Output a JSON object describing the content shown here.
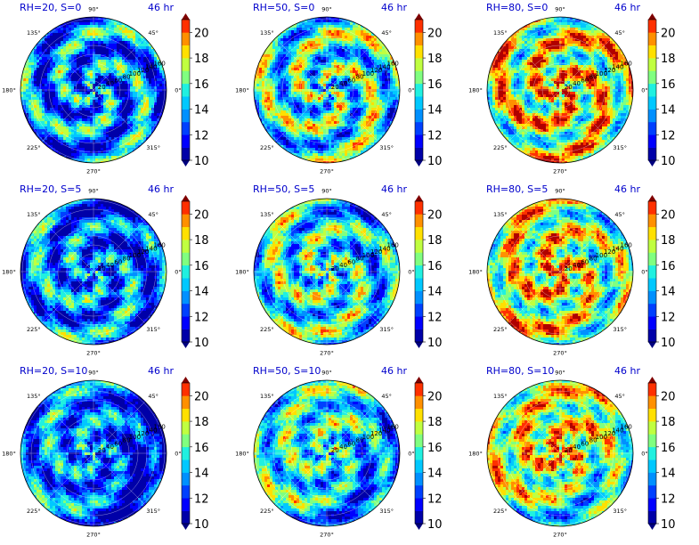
{
  "chart_data": {
    "type": "polar-filled-contour",
    "grid": {
      "rows": 3,
      "cols": 3
    },
    "colorbar": {
      "ticks": [
        10,
        12,
        14,
        16,
        18,
        20
      ],
      "range": [
        10,
        21
      ],
      "extend": "both",
      "colormap": "jet",
      "levels": [
        10,
        11,
        12,
        13,
        14,
        15,
        16,
        17,
        18,
        19,
        20,
        21
      ],
      "colors": [
        "#0000a8",
        "#0000ff",
        "#0040ff",
        "#0090ff",
        "#00c8ff",
        "#20f0e0",
        "#80ff80",
        "#c0ff40",
        "#ffe000",
        "#ff9000",
        "#ff3000",
        "#b00000"
      ],
      "under_color": "#00007f",
      "over_color": "#7f0000"
    },
    "angular_ticks": [
      "0°",
      "45°",
      "90°",
      "135°",
      "180°",
      "225°",
      "270°",
      "315°"
    ],
    "radial_ticks": [
      "20",
      "40",
      "60",
      "80",
      "100",
      "120",
      "140",
      "160"
    ],
    "panels": [
      {
        "title": "RH=20, S=0",
        "time": "46 hr",
        "rh": 20,
        "shear": 0
      },
      {
        "title": "RH=50, S=0",
        "time": "46 hr",
        "rh": 50,
        "shear": 0
      },
      {
        "title": "RH=80, S=0",
        "time": "46 hr",
        "rh": 80,
        "shear": 0
      },
      {
        "title": "RH=20, S=5",
        "time": "46 hr",
        "rh": 20,
        "shear": 5
      },
      {
        "title": "RH=50, S=5",
        "time": "46 hr",
        "rh": 50,
        "shear": 5
      },
      {
        "title": "RH=80, S=5",
        "time": "46 hr",
        "rh": 80,
        "shear": 5
      },
      {
        "title": "RH=20, S=10",
        "time": "46 hr",
        "rh": 20,
        "shear": 10
      },
      {
        "title": "RH=50, S=10",
        "time": "46 hr",
        "rh": 50,
        "shear": 10
      },
      {
        "title": "RH=80, S=10",
        "time": "46 hr",
        "rh": 80,
        "shear": 10
      }
    ]
  }
}
